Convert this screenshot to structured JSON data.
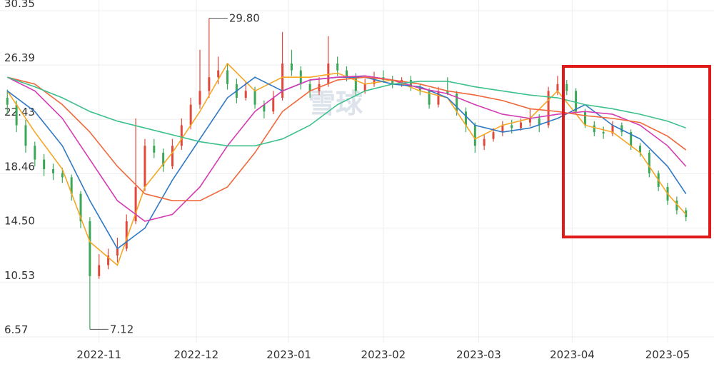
{
  "chart_data": {
    "type": "candlestick",
    "up_color": "#e0493b",
    "down_color": "#3aa856",
    "ylim": [
      6.57,
      30.35
    ],
    "yticks": [
      6.57,
      10.53,
      {
        "value": 14.5,
        "label": "14.50"
      },
      18.46,
      22.43,
      26.39,
      30.35
    ],
    "xlim": [
      -0.8,
      75.5
    ],
    "xticks": [
      {
        "value": 10.0,
        "label": "2022-11"
      },
      {
        "value": 20.6,
        "label": "2022-12"
      },
      {
        "value": 30.7,
        "label": "2023-01"
      },
      {
        "value": 41.0,
        "label": "2023-02"
      },
      {
        "value": 51.4,
        "label": "2023-03"
      },
      {
        "value": 61.6,
        "label": "2023-04"
      },
      {
        "value": 72.0,
        "label": "2023-05"
      }
    ],
    "grid": true,
    "watermark": "雪球",
    "open": [
      24.0,
      23.5,
      22.0,
      20.5,
      19.5,
      18.8,
      18.5,
      18.2,
      17.0,
      15.0,
      11.0,
      11.8,
      12.5,
      13.0,
      15.0,
      17.5,
      20.5,
      20.0,
      19.0,
      20.5,
      22.0,
      23.5,
      24.5,
      25.5,
      26.0,
      25.0,
      24.0,
      24.5,
      23.5,
      23.0,
      24.0,
      26.5,
      26.0,
      25.0,
      24.5,
      25.0,
      26.5,
      26.0,
      25.5,
      24.5,
      25.0,
      25.5,
      25.3,
      25.0,
      25.3,
      24.8,
      24.5,
      23.5,
      24.5,
      24.3,
      23.0,
      22.0,
      20.5,
      21.0,
      21.5,
      22.0,
      21.8,
      22.2,
      22.5,
      22.0,
      24.5,
      25.0,
      24.5,
      23.0,
      22.0,
      21.5,
      21.4,
      22.0,
      21.5,
      20.5,
      20.0,
      18.5,
      17.5,
      16.5,
      15.8
    ],
    "high": [
      24.6,
      23.8,
      22.4,
      20.8,
      19.9,
      19.2,
      18.9,
      18.4,
      17.2,
      15.3,
      12.6,
      13.0,
      13.8,
      15.5,
      22.5,
      21.0,
      21.0,
      20.3,
      21.0,
      22.5,
      24.0,
      27.5,
      29.8,
      27.0,
      26.5,
      25.4,
      25.2,
      24.8,
      23.8,
      24.5,
      28.8,
      27.5,
      26.3,
      25.3,
      25.5,
      28.5,
      27.0,
      26.3,
      25.8,
      25.4,
      25.9,
      26.0,
      25.6,
      25.5,
      25.6,
      25.0,
      24.7,
      24.8,
      25.5,
      24.5,
      23.3,
      22.2,
      21.3,
      21.8,
      22.3,
      22.4,
      22.5,
      23.2,
      22.8,
      24.8,
      25.6,
      25.3,
      24.7,
      23.2,
      22.3,
      21.9,
      22.3,
      22.2,
      21.7,
      20.7,
      20.2,
      18.7,
      17.8,
      16.8,
      16.0
    ],
    "low": [
      22.8,
      21.5,
      20.0,
      19.0,
      18.3,
      18.0,
      17.8,
      16.5,
      14.5,
      7.12,
      10.8,
      11.5,
      12.0,
      12.8,
      14.8,
      17.2,
      19.6,
      18.6,
      18.8,
      20.2,
      21.7,
      23.2,
      24.0,
      25.0,
      24.6,
      23.6,
      23.8,
      23.2,
      22.5,
      22.8,
      23.8,
      25.6,
      24.6,
      24.0,
      24.2,
      24.8,
      25.6,
      25.2,
      24.2,
      24.3,
      24.8,
      25.1,
      24.7,
      24.8,
      24.5,
      24.2,
      23.2,
      23.3,
      24.2,
      22.7,
      21.5,
      20.0,
      20.2,
      20.8,
      21.2,
      21.4,
      21.6,
      21.9,
      21.5,
      21.8,
      24.2,
      24.2,
      22.8,
      21.8,
      21.2,
      21.0,
      21.2,
      21.2,
      20.2,
      19.7,
      18.2,
      17.2,
      16.2,
      15.5,
      15.0
    ],
    "close": [
      23.5,
      22.0,
      20.5,
      19.5,
      18.8,
      18.5,
      18.2,
      17.0,
      15.0,
      11.0,
      11.8,
      12.5,
      13.0,
      15.0,
      17.5,
      20.5,
      20.0,
      19.0,
      20.5,
      22.0,
      23.5,
      24.5,
      25.5,
      26.0,
      25.0,
      24.0,
      24.5,
      23.5,
      23.0,
      24.0,
      26.5,
      26.0,
      25.0,
      24.5,
      25.0,
      26.5,
      26.0,
      25.5,
      24.5,
      25.0,
      25.5,
      25.3,
      25.0,
      25.3,
      24.8,
      24.5,
      23.5,
      24.5,
      24.3,
      23.0,
      22.0,
      20.5,
      21.0,
      21.5,
      22.0,
      21.8,
      22.2,
      22.5,
      22.0,
      24.5,
      25.0,
      24.5,
      23.0,
      22.0,
      21.5,
      21.4,
      22.0,
      21.5,
      20.5,
      20.0,
      18.5,
      17.5,
      16.5,
      15.8,
      15.3
    ],
    "ma": [
      {
        "color": "#f5a623",
        "x": [
          0,
          3,
          6,
          9,
          12,
          15,
          18,
          21,
          24,
          27,
          30,
          33,
          36,
          39,
          42,
          45,
          48,
          51,
          54,
          57,
          60,
          63,
          66,
          69,
          72,
          74
        ],
        "values": [
          24.5,
          21.5,
          18.8,
          13.5,
          11.8,
          17.5,
          20.0,
          23.0,
          26.5,
          24.5,
          25.5,
          25.5,
          25.8,
          25.0,
          25.3,
          24.5,
          24.0,
          21.0,
          22.0,
          22.5,
          24.5,
          22.0,
          21.5,
          20.0,
          17.0,
          15.5
        ]
      },
      {
        "color": "#2f78c4",
        "x": [
          0,
          3,
          6,
          9,
          12,
          15,
          18,
          21,
          24,
          27,
          30,
          33,
          36,
          39,
          42,
          45,
          48,
          51,
          54,
          57,
          60,
          63,
          66,
          69,
          72,
          74
        ],
        "values": [
          24.5,
          23.0,
          20.5,
          16.5,
          13.0,
          14.5,
          18.0,
          21.0,
          24.0,
          25.5,
          24.5,
          25.3,
          25.5,
          25.5,
          25.0,
          24.8,
          24.0,
          22.0,
          21.5,
          21.8,
          22.5,
          23.5,
          22.0,
          21.0,
          19.0,
          17.0
        ]
      },
      {
        "color": "#d33bb3",
        "x": [
          0,
          3,
          6,
          9,
          12,
          15,
          18,
          21,
          24,
          27,
          30,
          33,
          36,
          39,
          42,
          45,
          48,
          51,
          54,
          57,
          60,
          63,
          66,
          69,
          72,
          74
        ],
        "values": [
          25.5,
          24.5,
          22.5,
          19.5,
          16.5,
          15.0,
          15.5,
          17.5,
          20.5,
          23.0,
          24.5,
          25.3,
          25.5,
          25.6,
          25.3,
          24.7,
          24.3,
          23.5,
          22.8,
          22.5,
          22.8,
          23.0,
          22.8,
          22.0,
          20.5,
          19.0
        ]
      },
      {
        "color": "#f0683a",
        "x": [
          0,
          3,
          6,
          9,
          12,
          15,
          18,
          21,
          24,
          27,
          30,
          33,
          36,
          39,
          42,
          45,
          48,
          51,
          54,
          57,
          60,
          63,
          66,
          69,
          72,
          74
        ],
        "values": [
          25.5,
          25.0,
          23.5,
          21.5,
          19.0,
          17.0,
          16.5,
          16.5,
          17.5,
          20.0,
          23.0,
          24.5,
          25.3,
          25.5,
          25.3,
          25.0,
          24.5,
          24.2,
          23.8,
          23.2,
          23.0,
          22.7,
          22.5,
          22.2,
          21.2,
          20.2
        ]
      },
      {
        "color": "#3cc08c",
        "x": [
          0,
          3,
          6,
          9,
          12,
          15,
          18,
          21,
          24,
          27,
          30,
          33,
          36,
          39,
          42,
          45,
          48,
          51,
          54,
          57,
          60,
          63,
          66,
          69,
          72,
          74
        ],
        "values": [
          25.5,
          24.8,
          24.0,
          23.0,
          22.3,
          21.8,
          21.3,
          20.8,
          20.5,
          20.5,
          21.0,
          22.0,
          23.5,
          24.5,
          25.0,
          25.2,
          25.2,
          24.8,
          24.5,
          24.2,
          24.0,
          23.5,
          23.2,
          22.8,
          22.3,
          21.8
        ]
      }
    ],
    "annotations": [
      {
        "label": "29.80",
        "value": 29.8,
        "x": 22
      },
      {
        "label": "7.12",
        "value": 7.12,
        "x": 9
      }
    ]
  }
}
